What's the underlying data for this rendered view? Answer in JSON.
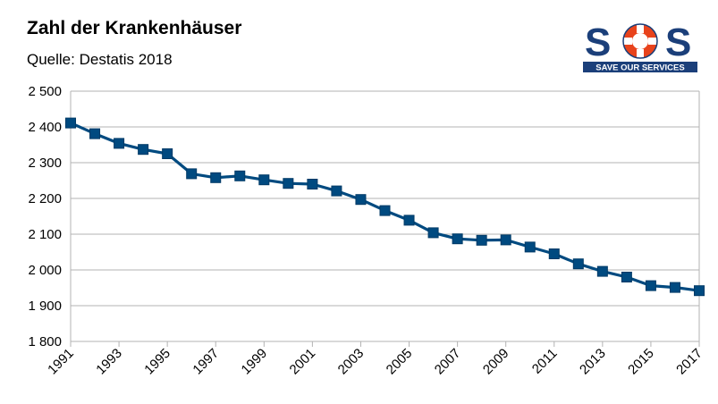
{
  "header": {
    "title": "Zahl der Krankenhäuser",
    "subtitle": "Quelle: Destatis 2018"
  },
  "logo": {
    "text": "SOS",
    "tagline": "SAVE OUR SERVICES",
    "brand_color": "#1b3f7a",
    "accent_color": "#e8431c"
  },
  "chart_data": {
    "type": "line",
    "title": "Zahl der Krankenhäuser",
    "subtitle": "Quelle: Destatis 2018",
    "xlabel": "",
    "ylabel": "",
    "ylim": [
      1800,
      2500
    ],
    "yticks": [
      1800,
      1900,
      2000,
      2100,
      2200,
      2300,
      2400,
      2500
    ],
    "ytick_labels": [
      "1 800",
      "1 900",
      "2 000",
      "2 100",
      "2 200",
      "2 300",
      "2 400",
      "2 500"
    ],
    "xticks": [
      1991,
      1993,
      1995,
      1997,
      1999,
      2001,
      2003,
      2005,
      2007,
      2009,
      2011,
      2013,
      2015,
      2017
    ],
    "xtick_labels": [
      "1991",
      "1993",
      "1995",
      "1997",
      "1999",
      "2001",
      "2003",
      "2005",
      "2007",
      "2009",
      "2011",
      "2013",
      "2015",
      "2017"
    ],
    "grid": true,
    "legend": "none",
    "line_color": "#004a80",
    "x": [
      1991,
      1992,
      1993,
      1994,
      1995,
      1996,
      1997,
      1998,
      1999,
      2000,
      2001,
      2002,
      2003,
      2004,
      2005,
      2006,
      2007,
      2008,
      2009,
      2010,
      2011,
      2012,
      2013,
      2014,
      2015,
      2016,
      2017
    ],
    "values": [
      2411,
      2381,
      2354,
      2337,
      2325,
      2269,
      2258,
      2263,
      2252,
      2242,
      2240,
      2221,
      2197,
      2166,
      2139,
      2104,
      2087,
      2083,
      2084,
      2064,
      2045,
      2017,
      1996,
      1980,
      1956,
      1951,
      1942
    ]
  }
}
